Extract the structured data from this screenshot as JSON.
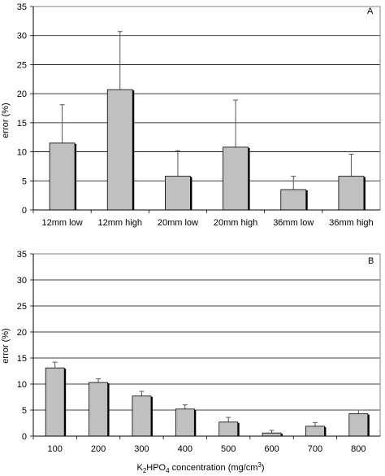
{
  "chart_data": [
    {
      "type": "bar",
      "panel_label": "A",
      "categories": [
        "12mm low",
        "12mm high",
        "20mm low",
        "20mm high",
        "36mm low",
        "36mm high"
      ],
      "values": [
        11.5,
        20.7,
        5.8,
        10.8,
        3.5,
        5.8
      ],
      "error_upper": [
        18.1,
        30.7,
        10.2,
        18.9,
        5.8,
        9.6
      ],
      "xlabel": "",
      "ylabel": "error (%)",
      "ylim": [
        0,
        35
      ],
      "yticks": [
        "0",
        "5",
        "10",
        "15",
        "20",
        "25",
        "30",
        "35"
      ],
      "grid": "horizontal",
      "bar_color": "#c0c0c0"
    },
    {
      "type": "bar",
      "panel_label": "B",
      "categories": [
        "100",
        "200",
        "300",
        "400",
        "500",
        "600",
        "700",
        "800"
      ],
      "values": [
        13.1,
        10.3,
        7.7,
        5.2,
        2.7,
        0.6,
        1.9,
        4.3
      ],
      "error_upper": [
        14.2,
        11.0,
        8.6,
        6.0,
        3.6,
        1.1,
        2.6,
        5.0
      ],
      "xlabel_parts": {
        "a": "K",
        "a_sub": "2",
        "b": "HPO",
        "b_sub": "4",
        "c": " concentration (mg/cm",
        "c_sup": "3",
        "d": ")"
      },
      "ylabel": "error (%)",
      "ylim": [
        0,
        35
      ],
      "yticks": [
        "0",
        "5",
        "10",
        "15",
        "20",
        "25",
        "30",
        "35"
      ],
      "grid": "horizontal",
      "bar_color": "#c0c0c0"
    }
  ]
}
